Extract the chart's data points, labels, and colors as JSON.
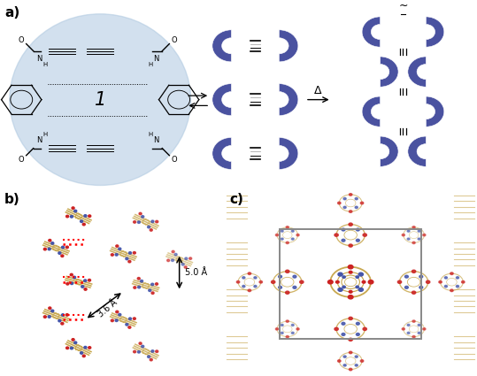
{
  "fig_width": 5.39,
  "fig_height": 4.25,
  "bg_color": "#ffffff",
  "label_a": "a)",
  "label_b": "b)",
  "label_c": "c)",
  "label_fontsize": 11,
  "blue_color": "#4a52a0",
  "blue_light": "#aec8e0",
  "annotation_50": "5.0 Å",
  "annotation_36": "3.6 Å",
  "delta_label": "Δ",
  "macrocycle_label": "1",
  "bond_color": "#C8A850",
  "nitrogen_color": "#4455aa",
  "oxygen_color": "#cc2222",
  "gray_color": "#888888"
}
